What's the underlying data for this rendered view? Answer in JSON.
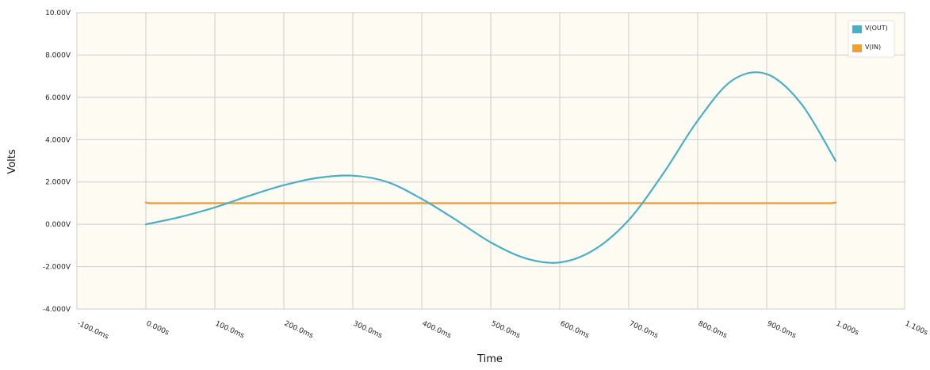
{
  "chart_data": {
    "type": "line",
    "xlabel": "Time",
    "ylabel": "Volts",
    "xlim": [
      -0.1,
      1.1
    ],
    "ylim": [
      -4,
      10
    ],
    "x_ticks": [
      {
        "value": -0.1,
        "label": "-100.0ms"
      },
      {
        "value": 0.0,
        "label": "0.000s"
      },
      {
        "value": 0.1,
        "label": "100.0ms"
      },
      {
        "value": 0.2,
        "label": "200.0ms"
      },
      {
        "value": 0.3,
        "label": "300.0ms"
      },
      {
        "value": 0.4,
        "label": "400.0ms"
      },
      {
        "value": 0.5,
        "label": "500.0ms"
      },
      {
        "value": 0.6,
        "label": "600.0ms"
      },
      {
        "value": 0.7,
        "label": "700.0ms"
      },
      {
        "value": 0.8,
        "label": "800.0ms"
      },
      {
        "value": 0.9,
        "label": "900.0ms"
      },
      {
        "value": 1.0,
        "label": "1.000s"
      },
      {
        "value": 1.1,
        "label": "1.100s"
      }
    ],
    "y_ticks": [
      {
        "value": 10,
        "label": "10.00V"
      },
      {
        "value": 8,
        "label": "8.000V"
      },
      {
        "value": 6,
        "label": "6.000V"
      },
      {
        "value": 4,
        "label": "4.000V"
      },
      {
        "value": 2,
        "label": "2.000V"
      },
      {
        "value": 0,
        "label": "0.000V"
      },
      {
        "value": -2,
        "label": "-2.000V"
      },
      {
        "value": -4,
        "label": "-4.000V"
      }
    ],
    "grid": true,
    "legend_position": "top-right",
    "series": [
      {
        "name": "V(OUT)",
        "color": "#4aaec6",
        "x": [
          0.0,
          0.05,
          0.1,
          0.15,
          0.2,
          0.25,
          0.3,
          0.35,
          0.4,
          0.45,
          0.5,
          0.55,
          0.6,
          0.65,
          0.7,
          0.75,
          0.8,
          0.85,
          0.9,
          0.95,
          1.0
        ],
        "y": [
          0.0,
          0.35,
          0.8,
          1.35,
          1.85,
          2.2,
          2.3,
          2.0,
          1.2,
          0.2,
          -0.85,
          -1.6,
          -1.8,
          -1.2,
          0.2,
          2.4,
          4.9,
          6.8,
          7.1,
          5.7,
          3.0
        ]
      },
      {
        "name": "V(IN)",
        "color": "#f0a030",
        "x": [
          0.0,
          0.005,
          0.995,
          1.0
        ],
        "y": [
          1.03,
          1.0,
          1.0,
          1.03
        ]
      }
    ]
  }
}
